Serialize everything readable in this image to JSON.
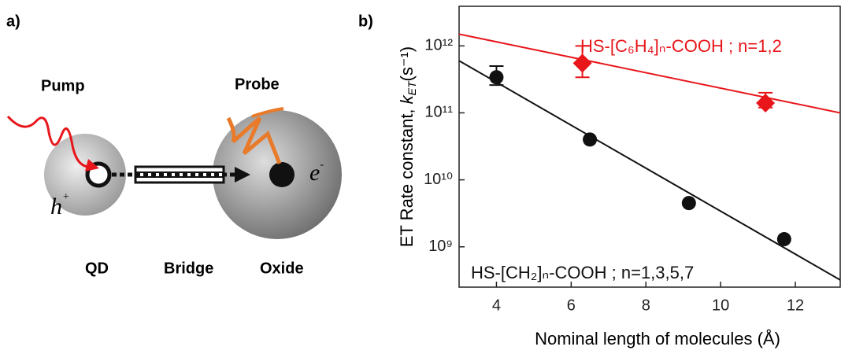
{
  "diagram": {
    "panel_label": "a)",
    "pump": "Pump",
    "probe": "Probe",
    "hole_letter": "h",
    "hole_charge": "+",
    "electron_letter": "e",
    "electron_charge": "-",
    "qd": "QD",
    "bridge": "Bridge",
    "oxide": "Oxide"
  },
  "chart_data": {
    "type": "scatter",
    "panel_label": "b)",
    "xlabel": "Nominal length of molecules (Å)",
    "ylabel": {
      "text": "ET Rate constant, ",
      "symbol": "k",
      "subscript": "ET",
      "unit": "(s⁻¹)"
    },
    "xlim": [
      3,
      13.2
    ],
    "xticks": [
      4,
      6,
      8,
      10,
      12
    ],
    "ylim": [
      250000000,
      3900000000000
    ],
    "log_y": true,
    "yticks": [
      {
        "value": 1000000000,
        "label": "10⁹"
      },
      {
        "value": 10000000000,
        "label": "10¹⁰"
      },
      {
        "value": 100000000000,
        "label": "10¹¹"
      },
      {
        "value": 1000000000000,
        "label": "10¹²"
      }
    ],
    "series": [
      {
        "name": "HS-[CH₂]ₙ-COOH ; n=1,3,5,7",
        "color": "#111111",
        "marker": "circle",
        "x": [
          4,
          6.5,
          9.15,
          11.7
        ],
        "values": [
          340000000000,
          40000000000,
          4500000000,
          1300000000
        ],
        "err_low": [
          260000000000,
          null,
          null,
          null
        ],
        "err_high": [
          500000000000,
          null,
          null,
          null
        ],
        "fit_x": [
          3,
          13.2
        ],
        "fit_y": [
          600000000000,
          320000000
        ]
      },
      {
        "name": "HS-[C₆H₄]ₙ-COOH ; n=1,2",
        "color": "#e8161b",
        "marker": "diamond",
        "x": [
          6.3,
          11.2
        ],
        "values": [
          550000000000,
          140000000000
        ],
        "err_low": [
          340000000000,
          120000000000
        ],
        "err_high": [
          1000000000000,
          200000000000
        ],
        "fit_x": [
          3,
          13.2
        ],
        "fit_y": [
          1500000000000,
          100000000000
        ]
      }
    ]
  }
}
